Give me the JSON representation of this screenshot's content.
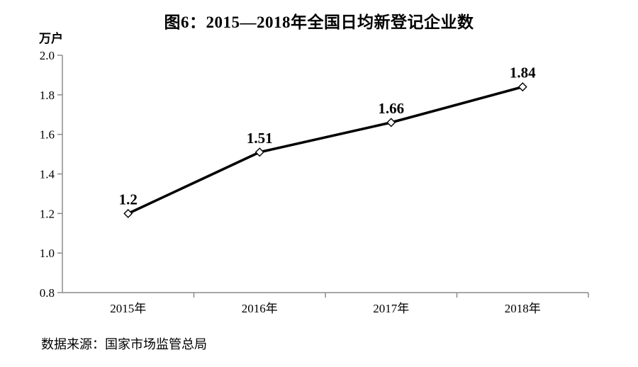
{
  "page": {
    "source": "数据来源：国家市场监管总局"
  },
  "chart_data": {
    "type": "line",
    "title": "图6：2015—2018年全国日均新登记企业数",
    "categories": [
      "2015年",
      "2016年",
      "2017年",
      "2018年"
    ],
    "values": [
      1.2,
      1.51,
      1.66,
      1.84
    ],
    "data_labels": [
      "1.2",
      "1.51",
      "1.66",
      "1.84"
    ],
    "ylabel": "万户",
    "xlabel": "",
    "ylim": [
      0.8,
      2.0
    ],
    "yticks": [
      "2.0",
      "1.8",
      "1.6",
      "1.4",
      "1.2",
      "1.0",
      "0.8"
    ],
    "grid": false,
    "legend": "none",
    "line_color": "#000000",
    "marker": "diamond-open",
    "marker_fill": "#ffffff",
    "axis_color": "#8c8c8c",
    "label_color": "#000000"
  }
}
